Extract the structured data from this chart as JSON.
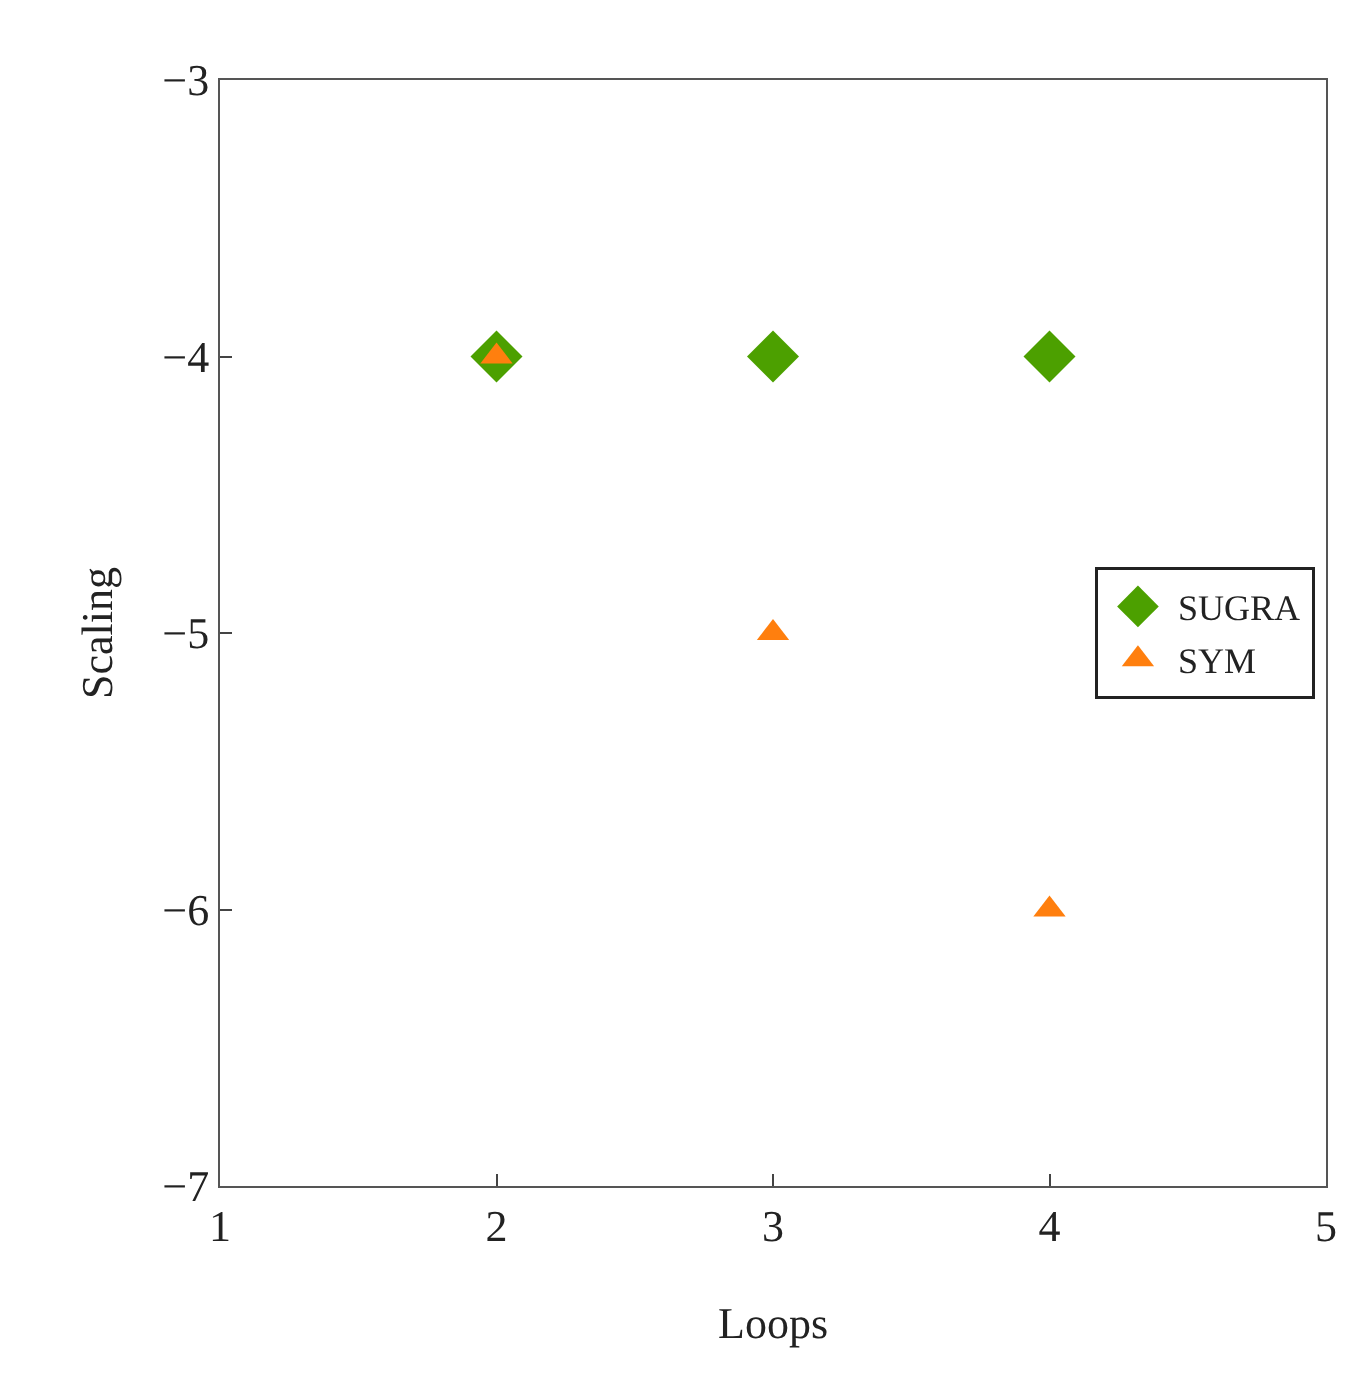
{
  "chart_data": {
    "type": "scatter",
    "xlabel": "Loops",
    "ylabel": "Scaling",
    "x": [
      2,
      3,
      4
    ],
    "series": [
      {
        "name": "SUGRA",
        "color": "#4ca000",
        "values": [
          -4,
          -4,
          -4
        ],
        "marker": "diamond"
      },
      {
        "name": "SYM",
        "color": "#ff7f0e",
        "values": [
          -4,
          -5,
          -6
        ],
        "marker": "triangle"
      }
    ],
    "xlim": [
      1,
      5
    ],
    "xticks": [
      1,
      2,
      3,
      4,
      5
    ],
    "ylim": [
      -7,
      -3
    ],
    "yticks": [
      -7,
      -6,
      -5,
      -4,
      -3
    ],
    "grid": false,
    "legend": "right"
  }
}
